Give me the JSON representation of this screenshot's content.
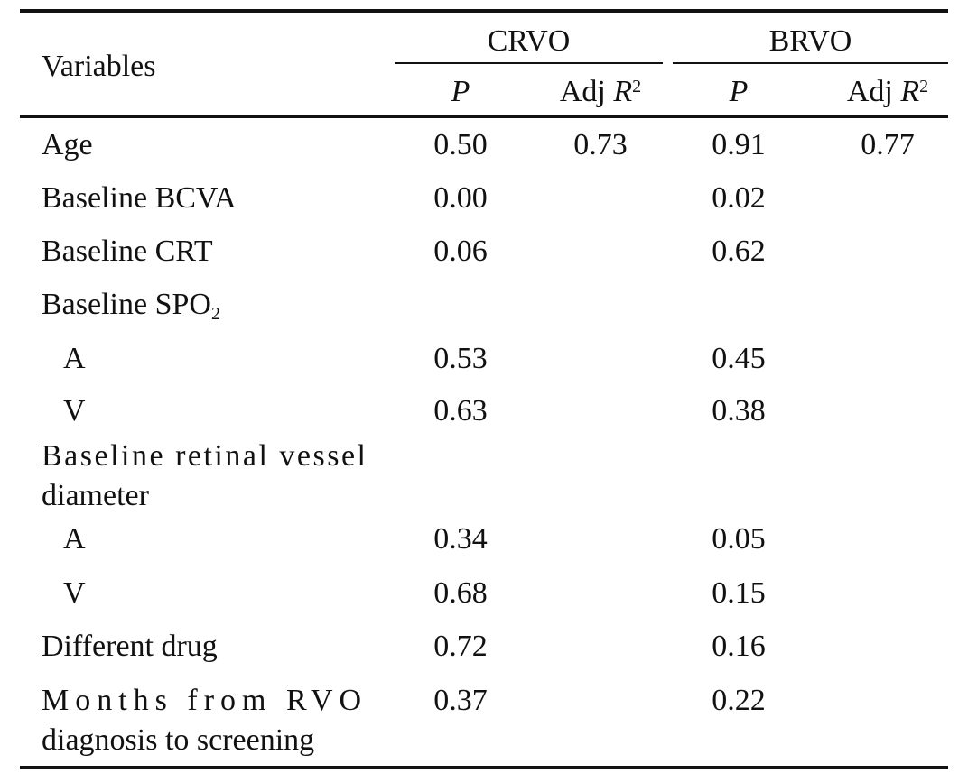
{
  "table": {
    "header": {
      "variables": "Variables",
      "groups": [
        "CRVO",
        "BRVO"
      ],
      "p_label": "P",
      "adj_label": "Adj ",
      "r_label": "R",
      "r_sup": "2"
    },
    "rows": [
      {
        "label": "Age",
        "crvo_p": "0.50",
        "crvo_adj": "0.73",
        "brvo_p": "0.91",
        "brvo_adj": "0.77"
      },
      {
        "label": "Baseline BCVA",
        "crvo_p": "0.00",
        "crvo_adj": "",
        "brvo_p": "0.02",
        "brvo_adj": ""
      },
      {
        "label": "Baseline CRT",
        "crvo_p": "0.06",
        "crvo_adj": "",
        "brvo_p": "0.62",
        "brvo_adj": ""
      },
      {
        "label": "Baseline SPO",
        "sub": "2",
        "crvo_p": "",
        "crvo_adj": "",
        "brvo_p": "",
        "brvo_adj": ""
      },
      {
        "label": "A",
        "crvo_p": "0.53",
        "crvo_adj": "",
        "brvo_p": "0.45",
        "brvo_adj": ""
      },
      {
        "label": "V",
        "crvo_p": "0.63",
        "crvo_adj": "",
        "brvo_p": "0.38",
        "brvo_adj": ""
      },
      {
        "label_line1": "Baseline retinal vessel",
        "label_line2": "diameter",
        "crvo_p": "",
        "crvo_adj": "",
        "brvo_p": "",
        "brvo_adj": ""
      },
      {
        "label": "A",
        "crvo_p": "0.34",
        "crvo_adj": "",
        "brvo_p": "0.05",
        "brvo_adj": ""
      },
      {
        "label": "V",
        "crvo_p": "0.68",
        "crvo_adj": "",
        "brvo_p": "0.15",
        "brvo_adj": ""
      },
      {
        "label": "Different drug",
        "crvo_p": "0.72",
        "crvo_adj": "",
        "brvo_p": "0.16",
        "brvo_adj": ""
      },
      {
        "label_line1": "Months from RVO",
        "label_line2": "diagnosis to screening",
        "crvo_p": "0.37",
        "crvo_adj": "",
        "brvo_p": "0.22",
        "brvo_adj": ""
      }
    ]
  }
}
